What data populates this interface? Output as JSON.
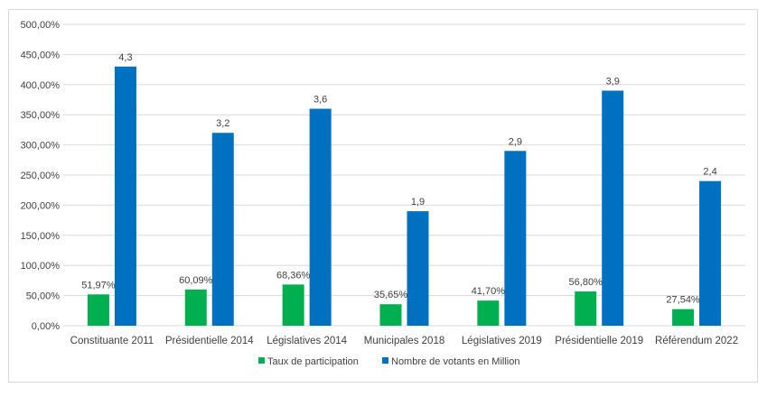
{
  "chart_data": {
    "type": "bar",
    "categories": [
      "Constituante 2011",
      "Présidentielle 2014",
      "Législatives 2014",
      "Municipales 2018",
      "Législatives 2019",
      "Présidentielle 2019",
      "Référendum 2022"
    ],
    "series": [
      {
        "name": "Taux de participation",
        "values": [
          51.97,
          60.09,
          68.36,
          35.65,
          41.7,
          56.8,
          27.54
        ],
        "labels": [
          "51,97%",
          "60,09%",
          "68,36%",
          "35,65%",
          "41,70%",
          "56,80%",
          "27,54%"
        ],
        "color": "#00b050"
      },
      {
        "name": "Nombre de votants en Million",
        "values": [
          4.3,
          3.2,
          3.6,
          1.9,
          2.9,
          3.9,
          2.4
        ],
        "labels": [
          "4,3",
          "3,2",
          "3,6",
          "1,9",
          "2,9",
          "3,9",
          "2,4"
        ],
        "color": "#0070c0"
      }
    ],
    "y_axis": {
      "ticks": [
        0,
        50,
        100,
        150,
        200,
        250,
        300,
        350,
        400,
        450,
        500
      ],
      "tick_labels": [
        "0,00%",
        "50,00%",
        "100,00%",
        "150,00%",
        "200,00%",
        "250,00%",
        "300,00%",
        "350,00%",
        "400,00%",
        "450,00%",
        "500,00%"
      ],
      "ylim": [
        0,
        500
      ]
    },
    "title": "",
    "xlabel": "",
    "ylabel": "",
    "grid": true,
    "legend": "bottom",
    "gridline_color": "#d9d9d9"
  }
}
